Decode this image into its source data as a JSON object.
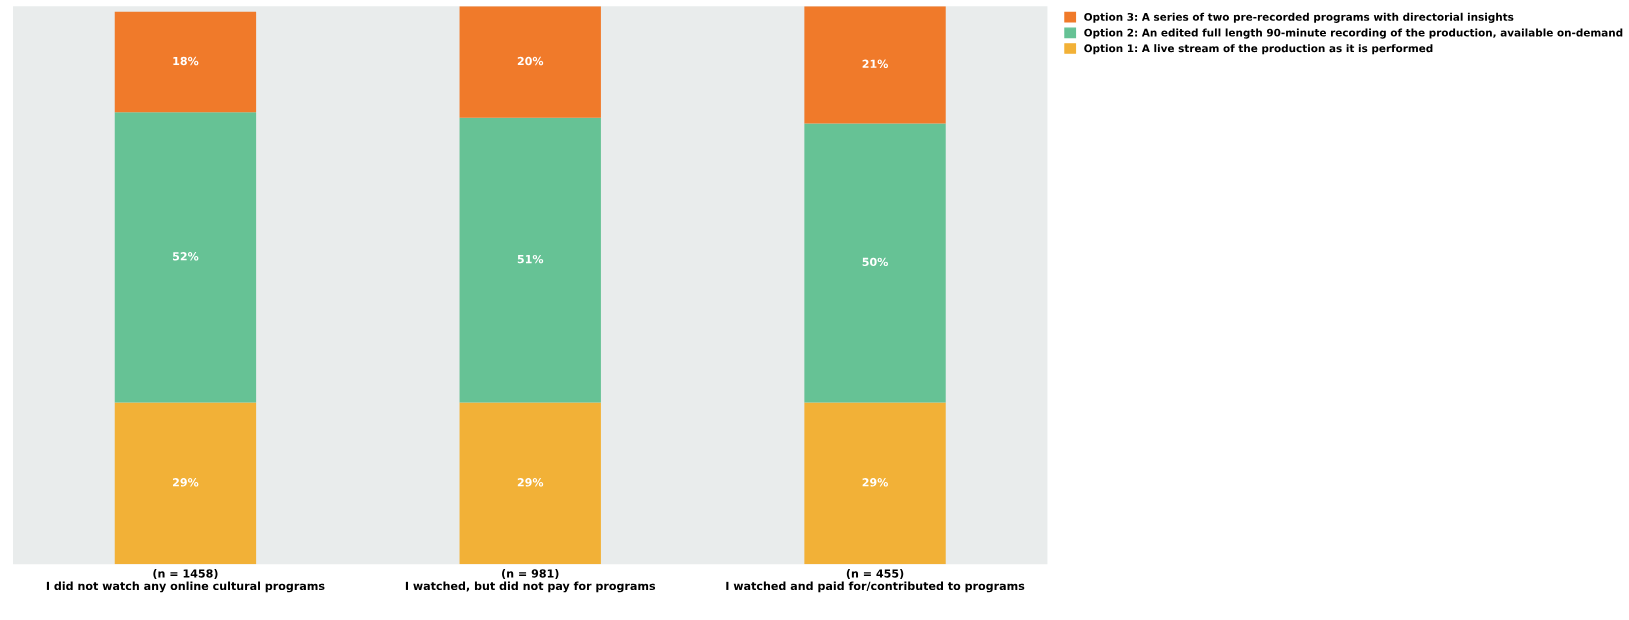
{
  "chart_data": {
    "type": "bar",
    "stacked": true,
    "tick_labels": "x",
    "ylim": [
      0,
      100
    ],
    "grid": false,
    "legend": "top right",
    "categories": [
      "(n = 1458)\nI did not watch any online cultural programs",
      "(n = 981)\nI watched, but did not pay for programs",
      "(n = 455)\nI watched and paid for/contributed to programs"
    ],
    "series": [
      {
        "name": "Option 1: A live stream of the production as it is performed",
        "color": "#f2b137",
        "values": [
          29,
          29,
          29
        ],
        "value_labels": [
          "29%",
          "29%",
          "29%"
        ]
      },
      {
        "name": "Option 2: An edited full length 90-minute recording of the production, available on-demand",
        "color": "#66c295",
        "values": [
          52,
          51,
          50
        ],
        "value_labels": [
          "52%",
          "51%",
          "50%"
        ]
      },
      {
        "name": "Option 3: A series of two pre-recorded programs with directorial insights",
        "color": "#f07a2a",
        "values": [
          18,
          20,
          21
        ],
        "value_labels": [
          "18%",
          "20%",
          "21%"
        ]
      }
    ]
  }
}
